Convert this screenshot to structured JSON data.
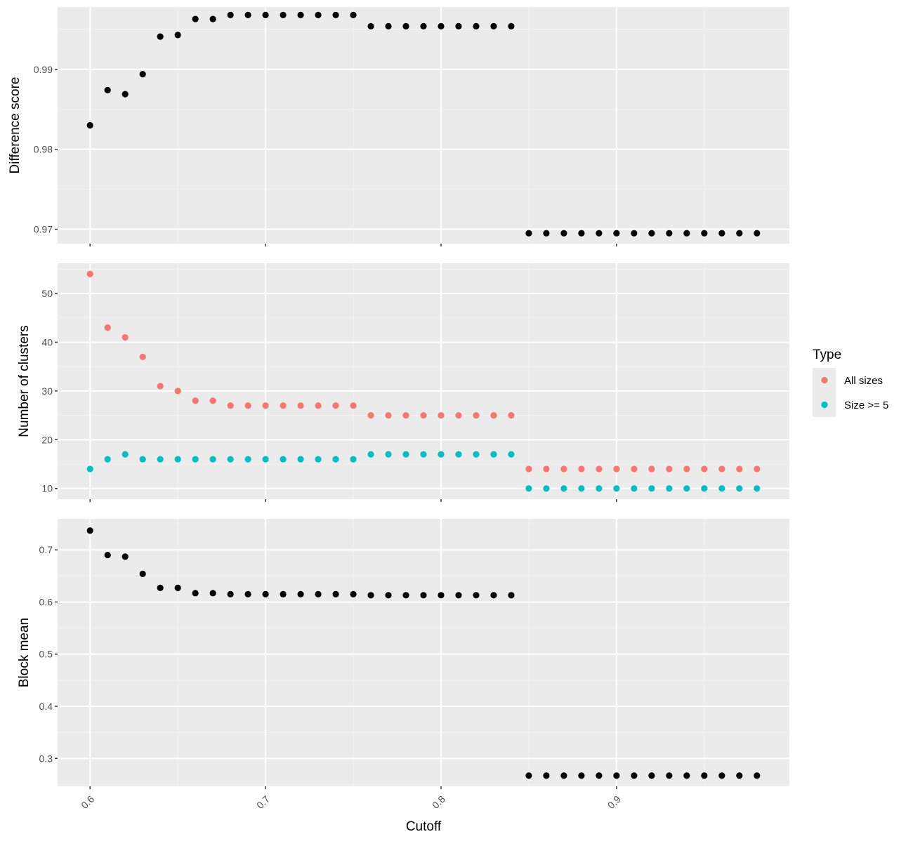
{
  "colors": {
    "panel_bg": "#EBEBEB",
    "grid_major": "#FFFFFF",
    "grid_minor": "#F2F2F2",
    "tick": "#333333",
    "point_default": "#000000",
    "all_sizes": "#F8766D",
    "size_ge_5": "#00BFC4"
  },
  "legend": {
    "title": "Type",
    "items": [
      {
        "label": "All sizes",
        "color": "#F8766D"
      },
      {
        "label": "Size >= 5",
        "color": "#00BFC4"
      }
    ]
  },
  "chart_data": [
    {
      "type": "scatter",
      "ylabel": "Difference score",
      "xlim": [
        0.5815,
        0.9985
      ],
      "ylim": [
        0.9682,
        0.9978
      ],
      "yticks": [
        0.97,
        0.98,
        0.99
      ],
      "ytick_labels": [
        "0.97",
        "0.98",
        "0.99"
      ],
      "series": [
        {
          "color": "#000000",
          "x": [
            0.6,
            0.61,
            0.62,
            0.63,
            0.64,
            0.65,
            0.66,
            0.67,
            0.68,
            0.69,
            0.7,
            0.71,
            0.72,
            0.73,
            0.74,
            0.75,
            0.76,
            0.77,
            0.78,
            0.79,
            0.8,
            0.81,
            0.82,
            0.83,
            0.84,
            0.85,
            0.86,
            0.87,
            0.88,
            0.89,
            0.9,
            0.91,
            0.92,
            0.93,
            0.94,
            0.95,
            0.96,
            0.97,
            0.98
          ],
          "y": [
            0.983,
            0.9874,
            0.9869,
            0.9894,
            0.9941,
            0.9943,
            0.9963,
            0.9963,
            0.9968,
            0.9968,
            0.9968,
            0.9968,
            0.9968,
            0.9968,
            0.9968,
            0.9968,
            0.9954,
            0.9954,
            0.9954,
            0.9954,
            0.9954,
            0.9954,
            0.9954,
            0.9954,
            0.9954,
            0.9695,
            0.9695,
            0.9695,
            0.9695,
            0.9695,
            0.9695,
            0.9695,
            0.9695,
            0.9695,
            0.9695,
            0.9695,
            0.9695,
            0.9695,
            0.9695
          ]
        }
      ]
    },
    {
      "type": "scatter",
      "ylabel": "Number of clusters",
      "xlim": [
        0.5815,
        0.9985
      ],
      "ylim": [
        7.8,
        56.2
      ],
      "yticks": [
        10,
        20,
        30,
        40,
        50
      ],
      "ytick_labels": [
        "10",
        "20",
        "30",
        "40",
        "50"
      ],
      "series": [
        {
          "name": "All sizes",
          "color": "#F8766D",
          "x": [
            0.6,
            0.61,
            0.62,
            0.63,
            0.64,
            0.65,
            0.66,
            0.67,
            0.68,
            0.69,
            0.7,
            0.71,
            0.72,
            0.73,
            0.74,
            0.75,
            0.76,
            0.77,
            0.78,
            0.79,
            0.8,
            0.81,
            0.82,
            0.83,
            0.84,
            0.85,
            0.86,
            0.87,
            0.88,
            0.89,
            0.9,
            0.91,
            0.92,
            0.93,
            0.94,
            0.95,
            0.96,
            0.97,
            0.98
          ],
          "y": [
            54,
            43,
            41,
            37,
            31,
            30,
            28,
            28,
            27,
            27,
            27,
            27,
            27,
            27,
            27,
            27,
            25,
            25,
            25,
            25,
            25,
            25,
            25,
            25,
            25,
            14,
            14,
            14,
            14,
            14,
            14,
            14,
            14,
            14,
            14,
            14,
            14,
            14,
            14
          ]
        },
        {
          "name": "Size >= 5",
          "color": "#00BFC4",
          "x": [
            0.6,
            0.61,
            0.62,
            0.63,
            0.64,
            0.65,
            0.66,
            0.67,
            0.68,
            0.69,
            0.7,
            0.71,
            0.72,
            0.73,
            0.74,
            0.75,
            0.76,
            0.77,
            0.78,
            0.79,
            0.8,
            0.81,
            0.82,
            0.83,
            0.84,
            0.85,
            0.86,
            0.87,
            0.88,
            0.89,
            0.9,
            0.91,
            0.92,
            0.93,
            0.94,
            0.95,
            0.96,
            0.97,
            0.98
          ],
          "y": [
            14,
            16,
            17,
            16,
            16,
            16,
            16,
            16,
            16,
            16,
            16,
            16,
            16,
            16,
            16,
            16,
            17,
            17,
            17,
            17,
            17,
            17,
            17,
            17,
            17,
            10,
            10,
            10,
            10,
            10,
            10,
            10,
            10,
            10,
            10,
            10,
            10,
            10,
            10
          ]
        }
      ]
    },
    {
      "type": "scatter",
      "ylabel": "Block mean",
      "xlabel": "Cutoff",
      "xlim": [
        0.5815,
        0.9985
      ],
      "ylim": [
        0.2465,
        0.7595
      ],
      "yticks": [
        0.3,
        0.4,
        0.5,
        0.6,
        0.7
      ],
      "ytick_labels": [
        "0.3",
        "0.4",
        "0.5",
        "0.6",
        "0.7"
      ],
      "xticks": [
        0.6,
        0.7,
        0.8,
        0.9
      ],
      "xtick_labels": [
        "0.6",
        "0.7",
        "0.8",
        "0.9"
      ],
      "series": [
        {
          "color": "#000000",
          "x": [
            0.6,
            0.61,
            0.62,
            0.63,
            0.64,
            0.65,
            0.66,
            0.67,
            0.68,
            0.69,
            0.7,
            0.71,
            0.72,
            0.73,
            0.74,
            0.75,
            0.76,
            0.77,
            0.78,
            0.79,
            0.8,
            0.81,
            0.82,
            0.83,
            0.84,
            0.85,
            0.86,
            0.87,
            0.88,
            0.89,
            0.9,
            0.91,
            0.92,
            0.93,
            0.94,
            0.95,
            0.96,
            0.97,
            0.98
          ],
          "y": [
            0.737,
            0.69,
            0.687,
            0.654,
            0.627,
            0.627,
            0.617,
            0.617,
            0.615,
            0.615,
            0.615,
            0.615,
            0.615,
            0.615,
            0.615,
            0.615,
            0.613,
            0.613,
            0.613,
            0.613,
            0.613,
            0.613,
            0.613,
            0.613,
            0.613,
            0.267,
            0.267,
            0.267,
            0.267,
            0.267,
            0.267,
            0.267,
            0.267,
            0.267,
            0.267,
            0.267,
            0.267,
            0.267,
            0.267
          ]
        }
      ]
    }
  ]
}
